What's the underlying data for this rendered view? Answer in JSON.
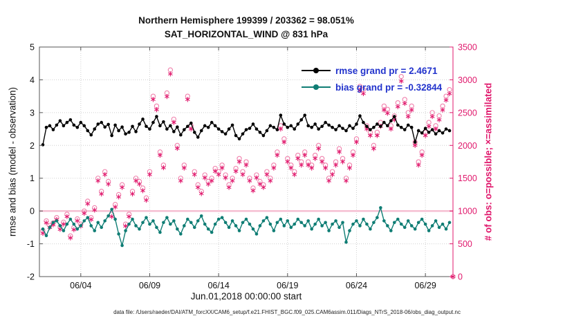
{
  "title": {
    "line1": "Northern Hemisphere 199399 / 203362 = 98.051%",
    "line2": "SAT_HORIZONTAL_WIND @ 831 hPa"
  },
  "left_axis": {
    "label": "rmse and bias (model - observation)",
    "min": -2,
    "max": 5,
    "ticks": [
      -2,
      -1,
      0,
      1,
      2,
      3,
      4,
      5
    ]
  },
  "right_axis": {
    "label": "# of obs: o=possible; ×=assimilated",
    "min": 0,
    "max": 3500,
    "ticks": [
      0,
      500,
      1000,
      1500,
      2000,
      2500,
      3000,
      3500
    ],
    "color": "#e0186c"
  },
  "x_axis": {
    "label": "Jun.01,2018 00:00:00 start",
    "tick_days": [
      4,
      9,
      14,
      19,
      24,
      29
    ],
    "tick_labels": [
      "06/04",
      "06/09",
      "06/14",
      "06/19",
      "06/24",
      "06/29"
    ],
    "min_day": 1,
    "max_day": 31
  },
  "legend": {
    "text_color": "#2233cc",
    "items": [
      {
        "label": "rmse grand pr = 2.4671",
        "color": "#000000"
      },
      {
        "label": "bias grand pr = -0.32844",
        "color": "#0f7d74"
      }
    ]
  },
  "reference_line": {
    "left_value": 0,
    "color": "#f5bcd0"
  },
  "footer": "data file: /Users/raeder/DAI/ATM_forcXX/CAM6_setup/f.e21.FHIST_BGC.f09_025.CAM6assim.011/Diags_NTrS_2018-06/obs_diag_output.nc",
  "chart_data": {
    "type": "line",
    "title": "Northern Hemisphere 199399 / 203362 = 98.051% | SAT_HORIZONTAL_WIND @ 831 hPa",
    "x_unit": "day of June 2018 (6-hourly bins)",
    "x_start": 1.25,
    "x_step": 0.25,
    "x_min": 1,
    "x_max": 31,
    "left_ylim": [
      -2,
      5
    ],
    "right_ylim": [
      0,
      3500
    ],
    "grid": true,
    "legend_position": "top-right-inside",
    "series": [
      {
        "name": "rmse",
        "axis": "left",
        "style": "line-dot",
        "color": "#000000",
        "values": [
          2.02,
          2.55,
          2.6,
          2.48,
          2.62,
          2.75,
          2.6,
          2.7,
          2.78,
          2.62,
          2.55,
          2.7,
          2.6,
          2.45,
          2.32,
          2.5,
          2.65,
          2.7,
          2.56,
          2.64,
          2.3,
          2.62,
          2.45,
          2.56,
          2.35,
          2.4,
          2.58,
          2.42,
          2.65,
          2.8,
          2.58,
          2.5,
          2.7,
          2.88,
          2.6,
          2.72,
          2.5,
          2.6,
          2.42,
          2.56,
          2.32,
          2.48,
          2.58,
          2.68,
          2.4,
          2.25,
          2.45,
          2.6,
          2.55,
          2.7,
          2.6,
          2.5,
          2.42,
          2.35,
          2.5,
          2.62,
          2.3,
          2.2,
          2.35,
          2.48,
          2.52,
          2.65,
          2.5,
          2.4,
          2.3,
          2.45,
          2.6,
          2.55,
          2.48,
          2.92,
          2.65,
          2.55,
          2.6,
          2.5,
          2.65,
          2.78,
          2.92,
          2.6,
          2.55,
          2.65,
          2.5,
          2.58,
          2.7,
          2.62,
          2.55,
          2.48,
          2.6,
          2.52,
          2.45,
          2.6,
          2.52,
          2.65,
          2.9,
          2.7,
          2.58,
          2.48,
          2.55,
          2.65,
          2.58,
          2.7,
          2.6,
          2.75,
          2.88,
          2.62,
          2.55,
          2.48,
          2.62,
          2.55,
          2.1,
          2.45,
          2.38,
          2.52,
          2.4,
          2.48,
          2.35,
          2.45,
          2.38,
          2.5,
          2.45,
          null
        ]
      },
      {
        "name": "bias",
        "axis": "left",
        "style": "line-dot",
        "color": "#0f7d74",
        "values": [
          -0.55,
          -0.75,
          -0.5,
          -0.35,
          -0.3,
          -0.45,
          -0.6,
          -0.4,
          -0.25,
          -0.4,
          -0.55,
          -0.45,
          -0.3,
          -0.2,
          -0.45,
          -0.6,
          -0.35,
          -0.5,
          -0.3,
          -0.15,
          0.05,
          -0.25,
          -0.7,
          -1.05,
          -0.6,
          -0.4,
          -0.25,
          -0.45,
          -0.55,
          -0.35,
          -0.2,
          -0.4,
          -0.3,
          -0.5,
          -0.65,
          -0.35,
          -0.2,
          -0.4,
          -0.3,
          -0.55,
          -0.7,
          -0.45,
          -0.25,
          -0.35,
          -0.5,
          -0.3,
          -0.15,
          -0.4,
          -0.55,
          -0.65,
          -0.4,
          -0.25,
          -0.2,
          -0.35,
          -0.5,
          -0.3,
          -0.45,
          -0.6,
          -0.35,
          -0.25,
          -0.4,
          -0.55,
          -0.7,
          -0.45,
          -0.3,
          -0.2,
          -0.4,
          -0.6,
          -0.35,
          -0.25,
          -0.45,
          -0.3,
          -0.5,
          -0.4,
          -0.25,
          -0.35,
          -0.45,
          -0.3,
          -0.55,
          -0.4,
          -0.25,
          -0.45,
          -0.35,
          -0.6,
          -0.4,
          -0.3,
          -0.5,
          -0.35,
          -0.95,
          -0.6,
          -0.4,
          -0.3,
          -0.45,
          -0.25,
          -0.4,
          -0.55,
          -0.35,
          -0.2,
          0.1,
          -0.3,
          -0.45,
          -0.6,
          -0.35,
          -0.25,
          -0.4,
          -0.5,
          -0.3,
          -0.45,
          -0.55,
          -0.35,
          -0.25,
          -0.4,
          -0.6,
          -0.45,
          -0.3,
          -0.5,
          -0.4,
          -0.55,
          -0.35,
          null
        ]
      },
      {
        "name": "possible_obs",
        "axis": "right",
        "style": "circle",
        "color": "#f07fab",
        "values": [
          700,
          850,
          780,
          820,
          900,
          760,
          830,
          950,
          620,
          750,
          880,
          800,
          1000,
          1150,
          900,
          1050,
          1500,
          1300,
          1600,
          1450,
          950,
          1100,
          1250,
          1400,
          800,
          950,
          1300,
          1500,
          1450,
          1350,
          1200,
          1600,
          2750,
          2600,
          1900,
          1700,
          2800,
          3150,
          2400,
          2000,
          1500,
          1700,
          2750,
          2300,
          1600,
          1400,
          1300,
          1550,
          1450,
          1500,
          1650,
          1600,
          1700,
          1550,
          1400,
          1500,
          1650,
          1800,
          1600,
          1750,
          1500,
          1350,
          1550,
          1450,
          1400,
          1600,
          1500,
          1700,
          1900,
          2300,
          2100,
          1800,
          1700,
          1600,
          1850,
          1750,
          1900,
          1750,
          1700,
          1850,
          2000,
          1800,
          1700,
          1500,
          1600,
          1750,
          1950,
          1800,
          1500,
          1700,
          1900,
          2100,
          2900,
          2850,
          2300,
          2200,
          2000,
          2200,
          2350,
          2600,
          2550,
          2300,
          2450,
          2650,
          3050,
          2700,
          2500,
          2600,
          2050,
          1750,
          1900,
          2200,
          2350,
          2500,
          2300,
          2450,
          2600,
          2750,
          2850,
          0
        ]
      },
      {
        "name": "assimilated_obs",
        "axis": "right",
        "style": "asterisk",
        "color": "#e0186c",
        "values": [
          660,
          820,
          750,
          790,
          870,
          720,
          800,
          915,
          590,
          715,
          850,
          770,
          965,
          1110,
          870,
          1015,
          1460,
          1260,
          1555,
          1410,
          915,
          1060,
          1215,
          1360,
          770,
          915,
          1260,
          1460,
          1410,
          1310,
          1165,
          1555,
          2700,
          2545,
          1850,
          1660,
          2745,
          3090,
          2350,
          1955,
          1460,
          1655,
          2700,
          2250,
          1555,
          1360,
          1265,
          1505,
          1410,
          1460,
          1605,
          1555,
          1655,
          1505,
          1360,
          1460,
          1605,
          1750,
          1555,
          1700,
          1460,
          1310,
          1505,
          1410,
          1360,
          1555,
          1460,
          1655,
          1850,
          2250,
          2050,
          1750,
          1655,
          1555,
          1800,
          1700,
          1850,
          1700,
          1655,
          1800,
          1950,
          1750,
          1655,
          1460,
          1555,
          1700,
          1900,
          1750,
          1460,
          1655,
          1850,
          2050,
          2840,
          2790,
          2250,
          2150,
          1950,
          2150,
          2290,
          2540,
          2490,
          2250,
          2390,
          2590,
          2980,
          2640,
          2440,
          2540,
          2000,
          1700,
          1850,
          2150,
          2290,
          2440,
          2250,
          2390,
          2540,
          2690,
          2790,
          0
        ]
      }
    ]
  }
}
